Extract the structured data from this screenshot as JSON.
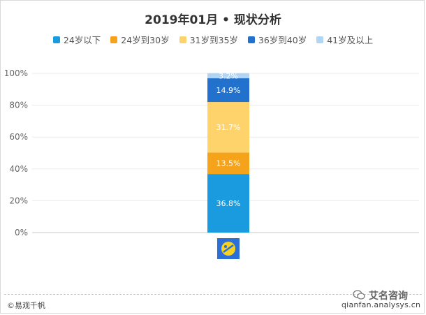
{
  "chart_data": {
    "type": "bar",
    "stacked": true,
    "title": "2019年01月 • 现状分析",
    "categories": [
      ""
    ],
    "series": [
      {
        "name": "24岁以下",
        "values": [
          36.8
        ],
        "label": "36.8%",
        "color": "#1a9be0"
      },
      {
        "name": "24岁到30岁",
        "values": [
          13.5
        ],
        "label": "13.5%",
        "color": "#f5a31a"
      },
      {
        "name": "31岁到35岁",
        "values": [
          31.7
        ],
        "label": "31.7%",
        "color": "#fed36b"
      },
      {
        "name": "36岁到40岁",
        "values": [
          14.9
        ],
        "label": "14.9%",
        "color": "#2271cc"
      },
      {
        "name": "41岁及以上",
        "values": [
          3.2
        ],
        "label": "3.2%",
        "color": "#b0d5f5"
      }
    ],
    "ylim": [
      0,
      100
    ],
    "yticks": [
      "0%",
      "20%",
      "40%",
      "60%",
      "80%",
      "100%"
    ],
    "grid": true,
    "legend": "top"
  },
  "footer": {
    "source": "©易观千帆",
    "brand": "艾名咨询",
    "url": "qianfan.analysys.cn"
  }
}
